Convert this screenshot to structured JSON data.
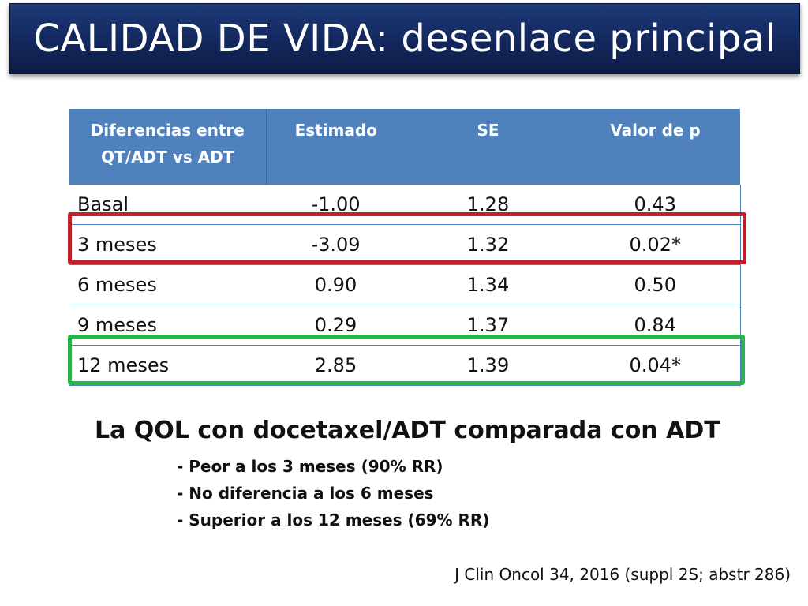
{
  "title": "CALIDAD DE VIDA: desenlace principal",
  "table": {
    "headers": [
      "Diferencias entre QT/ADT vs ADT",
      "Estimado",
      "SE",
      "Valor de p"
    ],
    "rows": [
      [
        "Basal",
        "-1.00",
        "1.28",
        "0.43"
      ],
      [
        "3 meses",
        "-3.09",
        "1.32",
        "0.02*"
      ],
      [
        "6 meses",
        "0.90",
        "1.34",
        "0.50"
      ],
      [
        "9 meses",
        "0.29",
        "1.37",
        "0.84"
      ],
      [
        "12 meses",
        "2.85",
        "1.39",
        "0.04*"
      ]
    ]
  },
  "highlights": {
    "red_row": "3 meses",
    "green_row": "12 meses",
    "red_color": "#c0202a",
    "green_color": "#2cb24b"
  },
  "summary": {
    "heading": "La QOL con docetaxel/ADT comparada con ADT",
    "points": [
      "- Peor a los 3 meses (90% RR)",
      "- No diferencia a los 6 meses",
      "- Superior a los 12 meses (69% RR)"
    ]
  },
  "citation": "J Clin Oncol 34, 2016 (suppl 2S; abstr 286)",
  "colors": {
    "title_bar": "#13275c",
    "table_header": "#4f81bd"
  }
}
